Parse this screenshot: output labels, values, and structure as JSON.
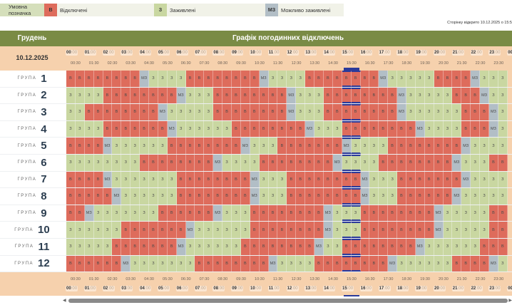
{
  "legend": {
    "caption": "Умовна позначка",
    "items": [
      {
        "code": "B",
        "short": "В",
        "label": "Відключені",
        "color": "#de6c5c"
      },
      {
        "code": "Z",
        "short": "З",
        "label": "Заживлені",
        "color": "#c9d7a1"
      },
      {
        "code": "M",
        "short": "МЗ",
        "label": "Можливо заживлені",
        "color": "#b2bec6"
      }
    ]
  },
  "opened_text": "Сторінку відкрито 10.12.2025 о 15:5",
  "header": {
    "month": "Грудень",
    "title": "Графік погодинних відключень",
    "date": "10.12.2025"
  },
  "hours": [
    "00",
    "01",
    "02",
    "03",
    "04",
    "05",
    "06",
    "07",
    "08",
    "09",
    "10",
    "11",
    "12",
    "13",
    "14",
    "15",
    "16",
    "17",
    "18",
    "19",
    "20",
    "21",
    "22",
    "23",
    "00"
  ],
  "minute_suffix": ":00",
  "half_labels": [
    "00:30",
    "01:30",
    "02:30",
    "03:30",
    "04:30",
    "05:30",
    "06:30",
    "07:30",
    "08:30",
    "09:30",
    "10:30",
    "11:30",
    "12:30",
    "13:30",
    "14:30",
    "15:30",
    "16:30",
    "17:30",
    "18:30",
    "19:30",
    "20:30",
    "21:30",
    "22:30",
    "23:30"
  ],
  "group_word": "ГРУПА",
  "current_slots": [
    30,
    31
  ],
  "groups": [
    {
      "n": "1",
      "codes": "BBBBBBBBMZZZZBBBBBBBBMZZZZBBBBBBBBMZZZZZBBBBMZZZ"
    },
    {
      "n": "2",
      "codes": "ZZZZBBBBBBBBMZZZBBBBBBBBMZZZBBBBBBBBMZZZZZBBBMZZ"
    },
    {
      "n": "3",
      "codes": "ZZBBBBBBBBMZZZZZBBBBBBBBMZZZBBBBBBBBMZZZZZZBBBMZ"
    },
    {
      "n": "4",
      "codes": "ZZZZBBBBBBBMZZZZZZBBBBBBBBMZZZBBBBBBBBMZZZZBBBMZ"
    },
    {
      "n": "5",
      "codes": "BBBBMZZZZZZBBBBBBBBMZZZBBBBBBBMZZZZBBBBBBBBMZZZZ"
    },
    {
      "n": "6",
      "codes": "ZZZZZZZZBBBBBBBBMZZZZBBBBBBBBMZZZZBBBBBBBBMZZZBB"
    },
    {
      "n": "7",
      "codes": "BBBBMZZZZZZZBBBBBBBBMZZZBBBBBBBBMZZZBBBBBBBMZZZZ"
    },
    {
      "n": "8",
      "codes": "BBBBBMZZZZZZBBBBBBBBMZZZBBBBBBBBMZZZBBBBBBMZZZZZ"
    },
    {
      "n": "9",
      "codes": "BBMZZZZZZZBBBBBBMZZZBBBBBBBBMZZZBBBBBBBBMZZZZZBB"
    },
    {
      "n": "10",
      "codes": "ZZZZZZBBBBBBBMZZZZZZBBBBBBBBMZZZBBBBBBBBMZZZZZBB"
    },
    {
      "n": "11",
      "codes": "ZZZZZBBBBBBBMZZZZZZBBBBBBBBMZZBBBBBBBBMZZZZZZBBB"
    },
    {
      "n": "12",
      "codes": "BBBBBBMZZZZZZZBBBBBBBBMZZZZBBBBBBBBMZZZZZZBBBBMZ"
    }
  ]
}
